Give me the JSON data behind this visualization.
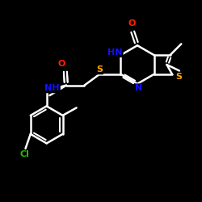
{
  "background_color": "#000000",
  "atom_colors": {
    "O": "#ff2200",
    "N": "#1111ff",
    "S": "#ffa500",
    "Cl": "#22bb00",
    "C": "#ffffff",
    "H": "#ffffff"
  },
  "bond_color": "#ffffff",
  "bond_width": 1.8,
  "figsize": [
    2.5,
    2.5
  ],
  "dpi": 100,
  "xlim": [
    0,
    10
  ],
  "ylim": [
    0,
    10
  ]
}
